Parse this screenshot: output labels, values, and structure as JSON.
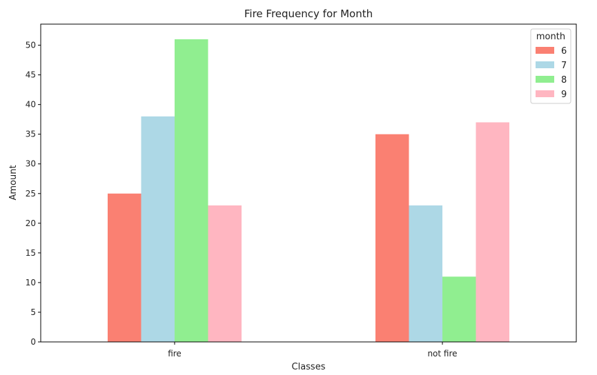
{
  "chart_data": {
    "type": "bar",
    "title": "Fire Frequency for Month",
    "xlabel": "Classes",
    "ylabel": "Amount",
    "categories": [
      "fire",
      "not fire"
    ],
    "series": [
      {
        "name": "6",
        "values": [
          25,
          35
        ],
        "color": "#fa8072"
      },
      {
        "name": "7",
        "values": [
          38,
          23
        ],
        "color": "#add8e6"
      },
      {
        "name": "8",
        "values": [
          51,
          11
        ],
        "color": "#90ee90"
      },
      {
        "name": "9",
        "values": [
          23,
          37
        ],
        "color": "#ffb6c1"
      }
    ],
    "ylim": [
      0,
      53.55
    ],
    "yticks": [
      0,
      5,
      10,
      15,
      20,
      25,
      30,
      35,
      40,
      45,
      50
    ],
    "grid": false,
    "legend": {
      "title": "month",
      "placement": "top-right"
    }
  }
}
